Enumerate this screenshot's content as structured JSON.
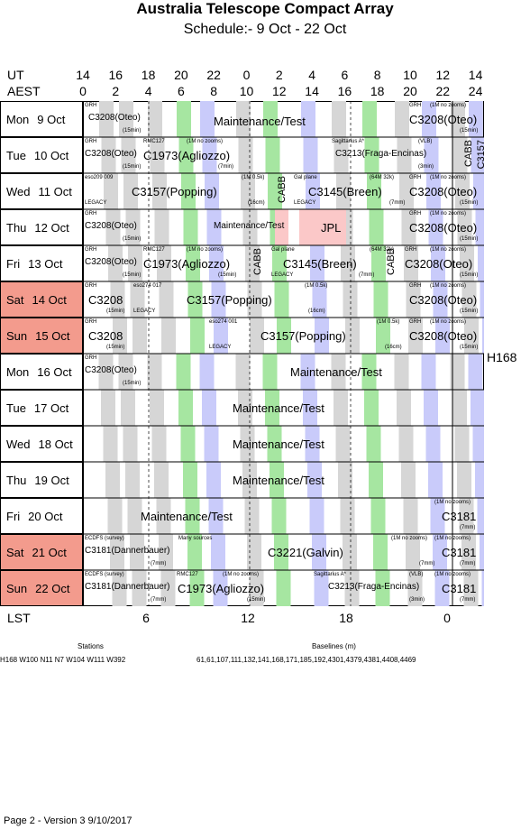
{
  "title": "Australia Telescope Compact Array",
  "subtitle": "Schedule:- 9  Oct - 22 Oct",
  "axis": {
    "ut_label": "UT",
    "aest_label": "AEST",
    "ut_ticks": [
      "14",
      "16",
      "18",
      "20",
      "22",
      "0",
      "2",
      "4",
      "6",
      "8",
      "10",
      "12",
      "14"
    ],
    "aest_ticks": [
      "0",
      "2",
      "4",
      "6",
      "8",
      "10",
      "12",
      "14",
      "16",
      "18",
      "20",
      "22",
      "24"
    ],
    "lst_label": "LST",
    "lst_ticks": [
      "6",
      "12",
      "18",
      "0"
    ]
  },
  "rows": [
    {
      "day": "Mon",
      "date": "9  Oct",
      "weekend": false
    },
    {
      "day": "Tue",
      "date": "10 Oct",
      "weekend": false
    },
    {
      "day": "Wed",
      "date": "11 Oct",
      "weekend": false
    },
    {
      "day": "Thu",
      "date": "12 Oct",
      "weekend": false
    },
    {
      "day": "Fri",
      "date": "13 Oct",
      "weekend": false
    },
    {
      "day": "Sat",
      "date": "14 Oct",
      "weekend": true
    },
    {
      "day": "Sun",
      "date": "15 Oct",
      "weekend": true
    },
    {
      "day": "Mon",
      "date": "16 Oct",
      "weekend": false
    },
    {
      "day": "Tue",
      "date": "17 Oct",
      "weekend": false
    },
    {
      "day": "Wed",
      "date": "18 Oct",
      "weekend": false
    },
    {
      "day": "Thu",
      "date": "19 Oct",
      "weekend": false
    },
    {
      "day": "Fri",
      "date": "20 Oct",
      "weekend": false
    },
    {
      "day": "Sat",
      "date": "21 Oct",
      "weekend": true
    },
    {
      "day": "Sun",
      "date": "22 Oct",
      "weekend": true
    }
  ],
  "array_config": "H168",
  "stations_title": "Stations",
  "stations": "H168  W100 N11 N7 W104 W111 W392",
  "baselines_title": "Baselines (m)",
  "baselines": "61,61,107,111,132,141,168,171,185,192,4301,4379,4381,4408,4469",
  "footer": "Page 2 - Version 3  9/10/2017",
  "colors": {
    "weekend": "#f39b8d",
    "blue": "#c9cbfa",
    "green": "#a6e6a1",
    "gray": "#d6d6d6",
    "pink": "#fbc8c8"
  },
  "blocks": [
    {
      "row": 0,
      "text": "Maintenance/Test",
      "size": "big"
    },
    {
      "row": 0,
      "text": "C3208(Oteo)",
      "size": "med"
    },
    {
      "row": 0,
      "text": "C3208(Oteo)",
      "size": "big"
    },
    {
      "row": 0,
      "text": "GRH",
      "size": "tiny"
    },
    {
      "row": 0,
      "text": "(15min)",
      "size": "tiny"
    },
    {
      "row": 0,
      "text": "GRH",
      "size": "tiny"
    },
    {
      "row": 0,
      "text": "(1M no zooms)",
      "size": "tiny"
    },
    {
      "row": 0,
      "text": "(15min)",
      "size": "tiny"
    },
    {
      "row": 1,
      "text": "C3208(Oteo)",
      "size": "med"
    },
    {
      "row": 1,
      "text": "C1973(Agliozzo)",
      "size": "big"
    },
    {
      "row": 1,
      "text": "C3213(Fraga-Encinas)",
      "size": "med"
    },
    {
      "row": 1,
      "text": "GRH",
      "size": "tiny"
    },
    {
      "row": 1,
      "text": "(15min)",
      "size": "tiny"
    },
    {
      "row": 1,
      "text": "RMC127",
      "size": "tiny"
    },
    {
      "row": 1,
      "text": "(1M no zooms)",
      "size": "tiny"
    },
    {
      "row": 1,
      "text": "(7min)",
      "size": "tiny"
    },
    {
      "row": 1,
      "text": "Sagittarius A*",
      "size": "tiny"
    },
    {
      "row": 1,
      "text": "(VLB)",
      "size": "tiny"
    },
    {
      "row": 1,
      "text": "(3min)",
      "size": "tiny"
    },
    {
      "row": 2,
      "text": "C3157(Popping)",
      "size": "big"
    },
    {
      "row": 2,
      "text": "C3145(Breen)",
      "size": "big"
    },
    {
      "row": 2,
      "text": "C3208(Oteo)",
      "size": "big"
    },
    {
      "row": 2,
      "text": "eso209 009",
      "size": "tiny"
    },
    {
      "row": 2,
      "text": "(1M 0.5k)",
      "size": "tiny"
    },
    {
      "row": 2,
      "text": "LEGACY",
      "size": "tiny"
    },
    {
      "row": 2,
      "text": "(16cm)",
      "size": "tiny"
    },
    {
      "row": 2,
      "text": "Gal plane",
      "size": "tiny"
    },
    {
      "row": 2,
      "text": "(64M 32k)",
      "size": "tiny"
    },
    {
      "row": 2,
      "text": "LEGACY",
      "size": "tiny"
    },
    {
      "row": 2,
      "text": "(7mm)",
      "size": "tiny"
    },
    {
      "row": 2,
      "text": "GRH",
      "size": "tiny"
    },
    {
      "row": 2,
      "text": "(1M no zooms)",
      "size": "tiny"
    },
    {
      "row": 2,
      "text": "(15min)",
      "size": "tiny"
    },
    {
      "row": 3,
      "text": "C3208(Oteo)",
      "size": "med"
    },
    {
      "row": 3,
      "text": "Maintenance/Test",
      "size": "med"
    },
    {
      "row": 3,
      "text": "JPL",
      "size": "big"
    },
    {
      "row": 3,
      "text": "C3208(Oteo)",
      "size": "big"
    },
    {
      "row": 3,
      "text": "GRH",
      "size": "tiny"
    },
    {
      "row": 3,
      "text": "(15min)",
      "size": "tiny"
    },
    {
      "row": 3,
      "text": "GRH",
      "size": "tiny"
    },
    {
      "row": 3,
      "text": "(1M no zooms)",
      "size": "tiny"
    },
    {
      "row": 3,
      "text": "(15min)",
      "size": "tiny"
    },
    {
      "row": 4,
      "text": "C3208(Oteo)",
      "size": "med"
    },
    {
      "row": 4,
      "text": "C1973(Agliozzo)",
      "size": "big"
    },
    {
      "row": 4,
      "text": "C3145(Breen)",
      "size": "big"
    },
    {
      "row": 4,
      "text": "C3208(Oteo)",
      "size": "big"
    },
    {
      "row": 4,
      "text": "GRH",
      "size": "tiny"
    },
    {
      "row": 4,
      "text": "(15min)",
      "size": "tiny"
    },
    {
      "row": 4,
      "text": "RMC127",
      "size": "tiny"
    },
    {
      "row": 4,
      "text": "(1M no zooms)",
      "size": "tiny"
    },
    {
      "row": 4,
      "text": "(15min)",
      "size": "tiny"
    },
    {
      "row": 4,
      "text": "Gal plane",
      "size": "tiny"
    },
    {
      "row": 4,
      "text": "(64M 32k)",
      "size": "tiny"
    },
    {
      "row": 4,
      "text": "LEGACY",
      "size": "tiny"
    },
    {
      "row": 4,
      "text": "(7mm)",
      "size": "tiny"
    },
    {
      "row": 4,
      "text": "GRH",
      "size": "tiny"
    },
    {
      "row": 4,
      "text": "(1M no zooms)",
      "size": "tiny"
    },
    {
      "row": 4,
      "text": "(15min)",
      "size": "tiny"
    },
    {
      "row": 5,
      "text": "C3208",
      "size": "big"
    },
    {
      "row": 5,
      "text": "C3157(Popping)",
      "size": "big"
    },
    {
      "row": 5,
      "text": "C3208(Oteo)",
      "size": "big"
    },
    {
      "row": 5,
      "text": "GRH",
      "size": "tiny"
    },
    {
      "row": 5,
      "text": "(15min)",
      "size": "tiny"
    },
    {
      "row": 5,
      "text": "eso274 017",
      "size": "tiny"
    },
    {
      "row": 5,
      "text": "LEGACY",
      "size": "tiny"
    },
    {
      "row": 5,
      "text": "(1M 0.5k)",
      "size": "tiny"
    },
    {
      "row": 5,
      "text": "(16cm)",
      "size": "tiny"
    },
    {
      "row": 5,
      "text": "GRH",
      "size": "tiny"
    },
    {
      "row": 5,
      "text": "(1M no zooms)",
      "size": "tiny"
    },
    {
      "row": 5,
      "text": "(15min)",
      "size": "tiny"
    },
    {
      "row": 6,
      "text": "C3208",
      "size": "big"
    },
    {
      "row": 6,
      "text": "C3157(Popping)",
      "size": "big"
    },
    {
      "row": 6,
      "text": "C3208(Oteo)",
      "size": "big"
    },
    {
      "row": 6,
      "text": "GRH",
      "size": "tiny"
    },
    {
      "row": 6,
      "text": "(15min)",
      "size": "tiny"
    },
    {
      "row": 6,
      "text": "eso274 001",
      "size": "tiny"
    },
    {
      "row": 6,
      "text": "LEGACY",
      "size": "tiny"
    },
    {
      "row": 6,
      "text": "(1M 0.5k)",
      "size": "tiny"
    },
    {
      "row": 6,
      "text": "(16cm)",
      "size": "tiny"
    },
    {
      "row": 6,
      "text": "GRH",
      "size": "tiny"
    },
    {
      "row": 6,
      "text": "(1M no zooms)",
      "size": "tiny"
    },
    {
      "row": 6,
      "text": "(15min)",
      "size": "tiny"
    },
    {
      "row": 7,
      "text": "C3208(Oteo)",
      "size": "med"
    },
    {
      "row": 7,
      "text": "Maintenance/Test",
      "size": "big"
    },
    {
      "row": 7,
      "text": "GRH",
      "size": "tiny"
    },
    {
      "row": 7,
      "text": "(15min)",
      "size": "tiny"
    },
    {
      "row": 8,
      "text": "Maintenance/Test",
      "size": "big"
    },
    {
      "row": 9,
      "text": "Maintenance/Test",
      "size": "big"
    },
    {
      "row": 10,
      "text": "Maintenance/Test",
      "size": "big"
    },
    {
      "row": 11,
      "text": "Maintenance/Test",
      "size": "big"
    },
    {
      "row": 11,
      "text": "C3181",
      "size": "big"
    },
    {
      "row": 11,
      "text": "(1M no zooms)",
      "size": "tiny"
    },
    {
      "row": 11,
      "text": "(7mm)",
      "size": "tiny"
    },
    {
      "row": 12,
      "text": "C3181(Dannerbauer)",
      "size": "med"
    },
    {
      "row": 12,
      "text": "C3221(Galvin)",
      "size": "big"
    },
    {
      "row": 12,
      "text": "C3181",
      "size": "big"
    },
    {
      "row": 12,
      "text": "ECDFS (survey)",
      "size": "tiny"
    },
    {
      "row": 12,
      "text": "(7mm)",
      "size": "tiny"
    },
    {
      "row": 12,
      "text": "Many sources",
      "size": "tiny"
    },
    {
      "row": 12,
      "text": "(1M no zooms)",
      "size": "tiny"
    },
    {
      "row": 12,
      "text": "(7mm)",
      "size": "tiny"
    },
    {
      "row": 12,
      "text": "(1M no zooms)",
      "size": "tiny"
    },
    {
      "row": 12,
      "text": "(7mm)",
      "size": "tiny"
    },
    {
      "row": 13,
      "text": "C3181(Dannerbauer)",
      "size": "med"
    },
    {
      "row": 13,
      "text": "C1973(Agliozzo)",
      "size": "big"
    },
    {
      "row": 13,
      "text": "C3213(Fraga-Encinas)",
      "size": "med"
    },
    {
      "row": 13,
      "text": "C3181",
      "size": "big"
    },
    {
      "row": 13,
      "text": "ECDFS (survey)",
      "size": "tiny"
    },
    {
      "row": 13,
      "text": "(7mm)",
      "size": "tiny"
    },
    {
      "row": 13,
      "text": "RMC127",
      "size": "tiny"
    },
    {
      "row": 13,
      "text": "(1M no zooms)",
      "size": "tiny"
    },
    {
      "row": 13,
      "text": "(15min)",
      "size": "tiny"
    },
    {
      "row": 13,
      "text": "Sagittarius A*",
      "size": "tiny"
    },
    {
      "row": 13,
      "text": "(VLB)",
      "size": "tiny"
    },
    {
      "row": 13,
      "text": "(3min)",
      "size": "tiny"
    },
    {
      "row": 13,
      "text": "(1M no zooms)",
      "size": "tiny"
    },
    {
      "row": 13,
      "text": "(7mm)",
      "size": "tiny"
    }
  ],
  "vertical_labels": [
    {
      "row": 1,
      "text": "CABB"
    },
    {
      "row": 1,
      "text": "C3157"
    },
    {
      "row": 2,
      "text": "CABB"
    },
    {
      "row": 4,
      "text": "CABB"
    },
    {
      "row": 4,
      "text": "CABB"
    }
  ]
}
